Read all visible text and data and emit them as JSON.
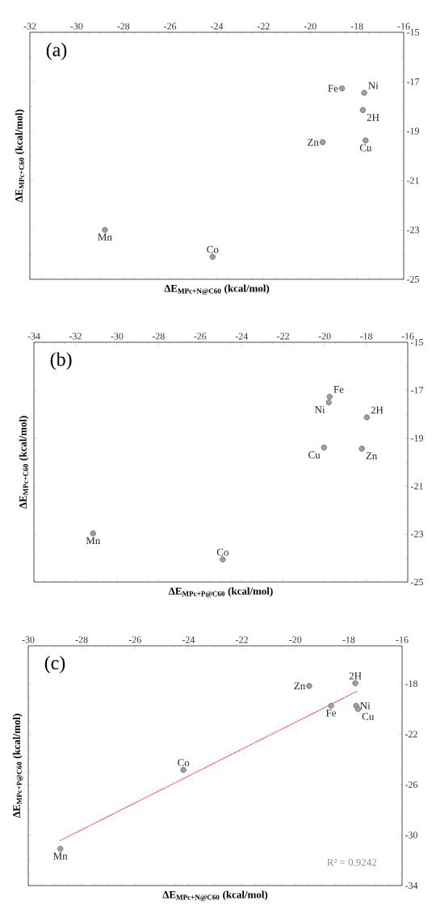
{
  "chart_data": [
    {
      "type": "scatter",
      "title": "(a)",
      "xlabel": "ΔE$_{MPc+N@C60}$ (kcal/mol)",
      "ylabel": "ΔE$_{MPc+C60}$ (kcal/mol)",
      "xlim": [
        -32,
        -16
      ],
      "xticks": [
        -32,
        -30,
        -28,
        -26,
        -24,
        -22,
        -20,
        -18,
        -16
      ],
      "ylim": [
        -25,
        -15
      ],
      "yticks": [
        -25,
        -23,
        -21,
        -19,
        -17,
        -15
      ],
      "marker": "circle",
      "series": [
        {
          "color": "#a0a0a0",
          "x": [
            -18.64,
            -17.69,
            -17.75,
            -19.47,
            -17.63,
            -28.79,
            -24.18
          ],
          "values": [
            -17.27,
            -17.45,
            -18.15,
            -19.45,
            -19.38,
            -23.0,
            -24.09
          ]
        }
      ],
      "annotations": [
        {
          "text": "Fe",
          "x": -18.64,
          "y": -17.27
        },
        {
          "text": "Ni",
          "x": -17.69,
          "y": -17.45
        },
        {
          "text": "2H",
          "x": -17.75,
          "y": -18.15
        },
        {
          "text": "Zn",
          "x": -19.47,
          "y": -19.45
        },
        {
          "text": "Cu",
          "x": -17.63,
          "y": -19.38
        },
        {
          "text": "Mn",
          "x": -28.79,
          "y": -23.0
        },
        {
          "text": "Co",
          "x": -24.18,
          "y": -24.09
        }
      ]
    },
    {
      "type": "scatter",
      "title": "(b)",
      "xlabel": "ΔE$_{MPc+P@C60}$ (kcal/mol)",
      "ylabel": "ΔE$_{MPc+C60}$ (kcal/mol)",
      "xlim": [
        -34,
        -16
      ],
      "xticks": [
        -34,
        -32,
        -30,
        -28,
        -26,
        -24,
        -22,
        -20,
        -18,
        -16
      ],
      "ylim": [
        -25,
        -15
      ],
      "yticks": [
        -25,
        -23,
        -21,
        -19,
        -17,
        -15
      ],
      "marker": "circle",
      "series": [
        {
          "color": "#a0a0a0",
          "x": [
            -19.76,
            -19.8,
            -17.97,
            -18.21,
            -20.03,
            -31.15,
            -24.91
          ],
          "values": [
            -17.27,
            -17.51,
            -18.13,
            -19.44,
            -19.39,
            -22.97,
            -24.06
          ]
        }
      ],
      "annotations": [
        {
          "text": "Fe",
          "x": -19.76,
          "y": -17.27
        },
        {
          "text": "Ni",
          "x": -19.8,
          "y": -17.51
        },
        {
          "text": "2H",
          "x": -17.97,
          "y": -18.13
        },
        {
          "text": "Zn",
          "x": -18.21,
          "y": -19.44
        },
        {
          "text": "Cu",
          "x": -20.03,
          "y": -19.39
        },
        {
          "text": "Mn",
          "x": -31.15,
          "y": -22.97
        },
        {
          "text": "Co",
          "x": -24.91,
          "y": -24.06
        }
      ]
    },
    {
      "type": "scatter",
      "title": "(c)",
      "xlabel": "ΔE$_{MPc+N@C60}$ (kcal/mol)",
      "ylabel": "ΔE$_{MPc+P@C60}$ (kcal/mol)",
      "xlim": [
        -30,
        -16
      ],
      "xticks": [
        -30,
        -28,
        -26,
        -24,
        -22,
        -20,
        -18,
        -16
      ],
      "ylim": [
        -34,
        -15
      ],
      "yticks": [
        -34,
        -30,
        -26,
        -22,
        -18
      ],
      "marker": "circle",
      "series": [
        {
          "color": "#a0a0a0",
          "x": [
            -18.66,
            -17.72,
            -17.75,
            -19.48,
            -17.65,
            -28.8,
            -24.19
          ],
          "values": [
            -19.75,
            -19.75,
            -17.96,
            -18.18,
            -20.02,
            -31.09,
            -24.84
          ]
        },
        {
          "type": "line",
          "color": "#ff0000",
          "line_style": "dotted",
          "marker": "none",
          "x": [
            -28.8,
            -17.67
          ],
          "values": [
            -30.43,
            -18.59
          ]
        }
      ],
      "annotations": [
        {
          "text": "Fe",
          "x": -18.66,
          "y": -19.75
        },
        {
          "text": "Ni",
          "x": -17.72,
          "y": -19.75
        },
        {
          "text": "2H",
          "x": -17.75,
          "y": -17.96
        },
        {
          "text": "Zn",
          "x": -19.48,
          "y": -18.18
        },
        {
          "text": "Cu",
          "x": -17.65,
          "y": -20.02
        },
        {
          "text": "Mn",
          "x": -28.8,
          "y": -31.09
        },
        {
          "text": "Co",
          "x": -24.19,
          "y": -24.84
        },
        "R² = 0.9242"
      ]
    }
  ]
}
